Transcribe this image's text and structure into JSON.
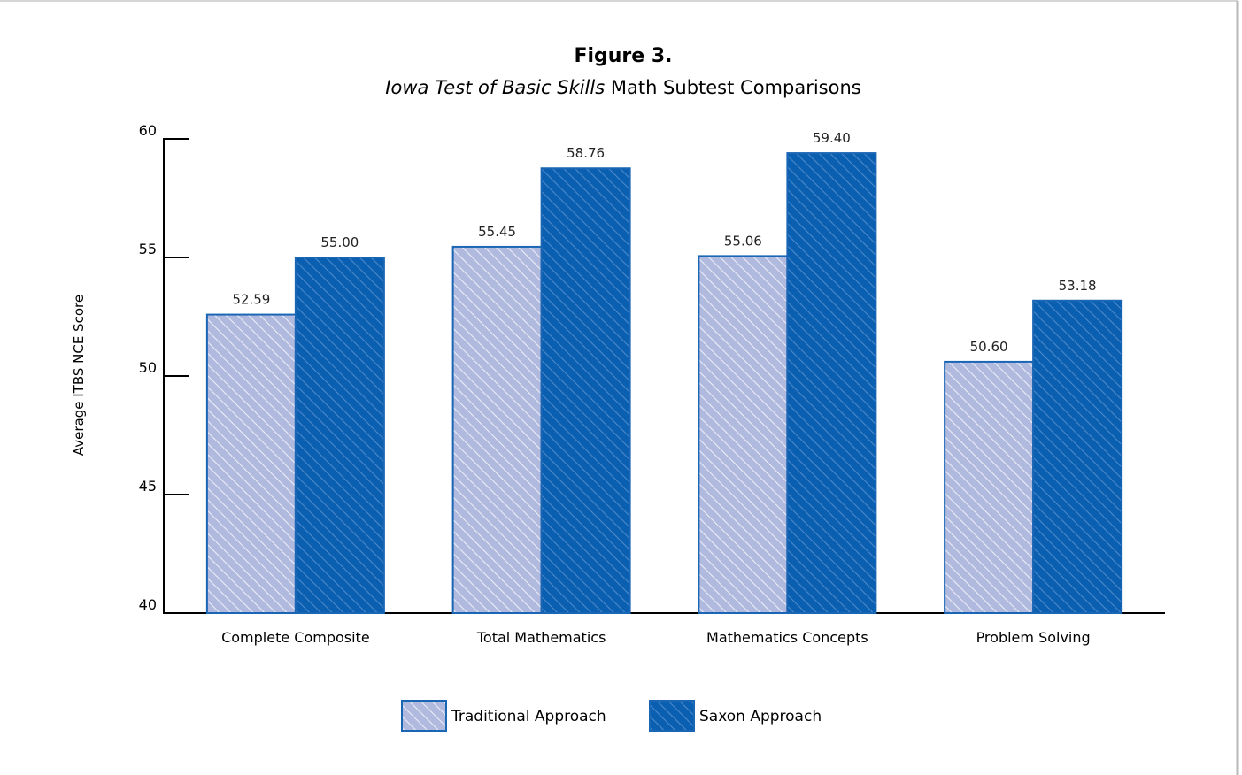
{
  "chart_data": {
    "type": "bar",
    "title": "Figure 3.",
    "subtitle_italic": "Iowa Test of Basic Skills",
    "subtitle_rest": " Math Subtest Comparisons",
    "ylabel": "Average ITBS NCE Score",
    "xlabel": "",
    "ylim": [
      40,
      60
    ],
    "yticks": [
      40,
      45,
      50,
      55,
      60
    ],
    "categories": [
      "Complete Composite",
      "Total Mathematics",
      "Mathematics Concepts",
      "Problem Solving"
    ],
    "series": [
      {
        "name": "Traditional Approach",
        "values": [
          52.59,
          55.45,
          55.06,
          50.6
        ],
        "labels": [
          "52.59",
          "55.45",
          "55.06",
          "50.60"
        ],
        "color": "#b0b9de",
        "hatch": "#ffffff"
      },
      {
        "name": "Saxon Approach",
        "values": [
          55.0,
          58.76,
          59.4,
          53.18
        ],
        "labels": [
          "55.00",
          "58.76",
          "59.40",
          "53.18"
        ],
        "color": "#0a5fb0",
        "hatch": "#5d93d2"
      }
    ],
    "legend_position": "bottom-center",
    "grid": false,
    "border_color": "#1a66b5"
  }
}
